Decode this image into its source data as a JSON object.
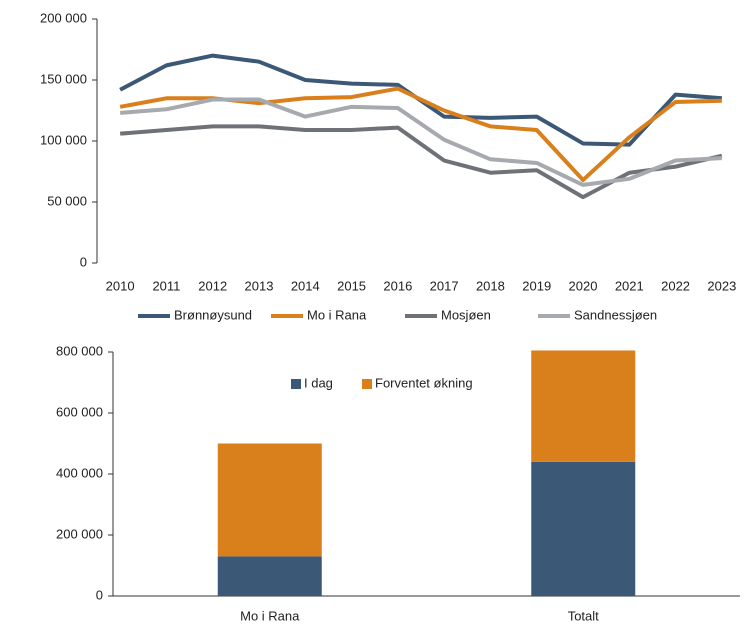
{
  "chart_data": [
    {
      "type": "line",
      "categories": [
        "2010",
        "2011",
        "2012",
        "2013",
        "2014",
        "2015",
        "2016",
        "2017",
        "2018",
        "2019",
        "2020",
        "2021",
        "2022",
        "2023"
      ],
      "series": [
        {
          "name": "Brønnøysund",
          "color": "#3b5876",
          "values": [
            142000,
            162000,
            170000,
            165000,
            150000,
            147000,
            146000,
            120000,
            119000,
            120000,
            98000,
            97000,
            138000,
            135000
          ]
        },
        {
          "name": "Mo i Rana",
          "color": "#d97f1c",
          "values": [
            128000,
            135000,
            135000,
            131000,
            135000,
            136000,
            143000,
            125000,
            112000,
            109000,
            68000,
            103000,
            132000,
            133000
          ]
        },
        {
          "name": "Mosjøen",
          "color": "#6e7277",
          "values": [
            106000,
            109000,
            112000,
            112000,
            109000,
            109000,
            111000,
            84000,
            74000,
            76000,
            54000,
            74000,
            79000,
            88000
          ]
        },
        {
          "name": "Sandnessjøen",
          "color": "#a6a9ad",
          "values": [
            123000,
            126000,
            134000,
            134000,
            120000,
            128000,
            127000,
            101000,
            85000,
            82000,
            64000,
            69000,
            84000,
            86000
          ]
        }
      ],
      "ylim": [
        0,
        200000
      ],
      "yticks": [
        0,
        {
          "value": 50000,
          "label": "50 000"
        },
        {
          "value": 100000,
          "label": "100 000"
        },
        {
          "value": 150000,
          "label": "150 000"
        },
        {
          "value": 200000,
          "label": "200 000"
        }
      ],
      "legend": "bottom"
    },
    {
      "type": "stacked_bar",
      "categories": [
        "Mo i Rana",
        "Totalt"
      ],
      "series": [
        {
          "name": "I dag",
          "color": "#3b5876",
          "values": [
            130000,
            440000
          ]
        },
        {
          "name": "Forventet økning",
          "color": "#d97f1c",
          "values": [
            370000,
            365000
          ]
        }
      ],
      "ylim": [
        0,
        800000
      ],
      "yticks": [
        0,
        {
          "value": 200000,
          "label": "200 000"
        },
        {
          "value": 400000,
          "label": "400 000"
        },
        {
          "value": 600000,
          "label": "600 000"
        },
        {
          "value": 800000,
          "label": "800 000"
        }
      ],
      "legend": "top"
    }
  ]
}
